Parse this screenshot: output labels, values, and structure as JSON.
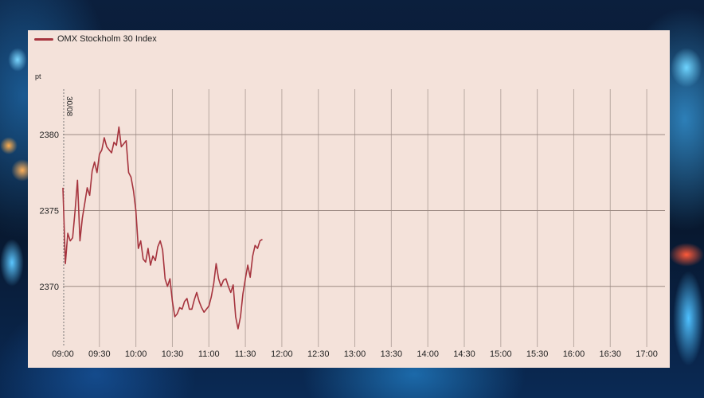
{
  "chart_data": {
    "type": "line",
    "ylabel": "pt",
    "x_start": "09:00",
    "x_step_minutes": 2,
    "ylim": [
      2366,
      2383
    ],
    "xlim": [
      "09:00",
      "17:15"
    ],
    "x_ticks": [
      "09:00",
      "09:30",
      "10:00",
      "10:30",
      "11:00",
      "11:30",
      "12:00",
      "12:30",
      "13:00",
      "13:30",
      "14:00",
      "14:30",
      "15:00",
      "15:30",
      "16:00",
      "16:30",
      "17:00"
    ],
    "y_ticks": [
      2370,
      2375,
      2380
    ],
    "annotation": "30/08",
    "grid": true,
    "legend_position": "top-left",
    "series": [
      {
        "name": "OMX Stockholm 30 Index",
        "color": "#a6343e",
        "values": [
          2376.5,
          2371.5,
          2373.5,
          2373.0,
          2373.2,
          2375.0,
          2377.0,
          2373.0,
          2374.5,
          2375.5,
          2376.5,
          2376.0,
          2377.6,
          2378.2,
          2377.5,
          2378.7,
          2379.0,
          2379.8,
          2379.2,
          2379.0,
          2378.8,
          2379.5,
          2379.3,
          2380.5,
          2379.2,
          2379.4,
          2379.6,
          2377.5,
          2377.2,
          2376.3,
          2375.0,
          2372.5,
          2373.0,
          2371.8,
          2371.6,
          2372.5,
          2371.4,
          2372.0,
          2371.7,
          2372.6,
          2373.0,
          2372.4,
          2370.5,
          2370.0,
          2370.5,
          2369.0,
          2368.0,
          2368.2,
          2368.6,
          2368.5,
          2369.0,
          2369.2,
          2368.5,
          2368.5,
          2369.1,
          2369.6,
          2369.0,
          2368.6,
          2368.3,
          2368.5,
          2368.7,
          2369.3,
          2370.2,
          2371.5,
          2370.5,
          2370.0,
          2370.4,
          2370.5,
          2370.0,
          2369.6,
          2370.1,
          2368.0,
          2367.2,
          2368.0,
          2369.5,
          2370.5,
          2371.4,
          2370.6,
          2372.0,
          2372.7,
          2372.5,
          2373.0,
          2373.1
        ]
      }
    ]
  }
}
